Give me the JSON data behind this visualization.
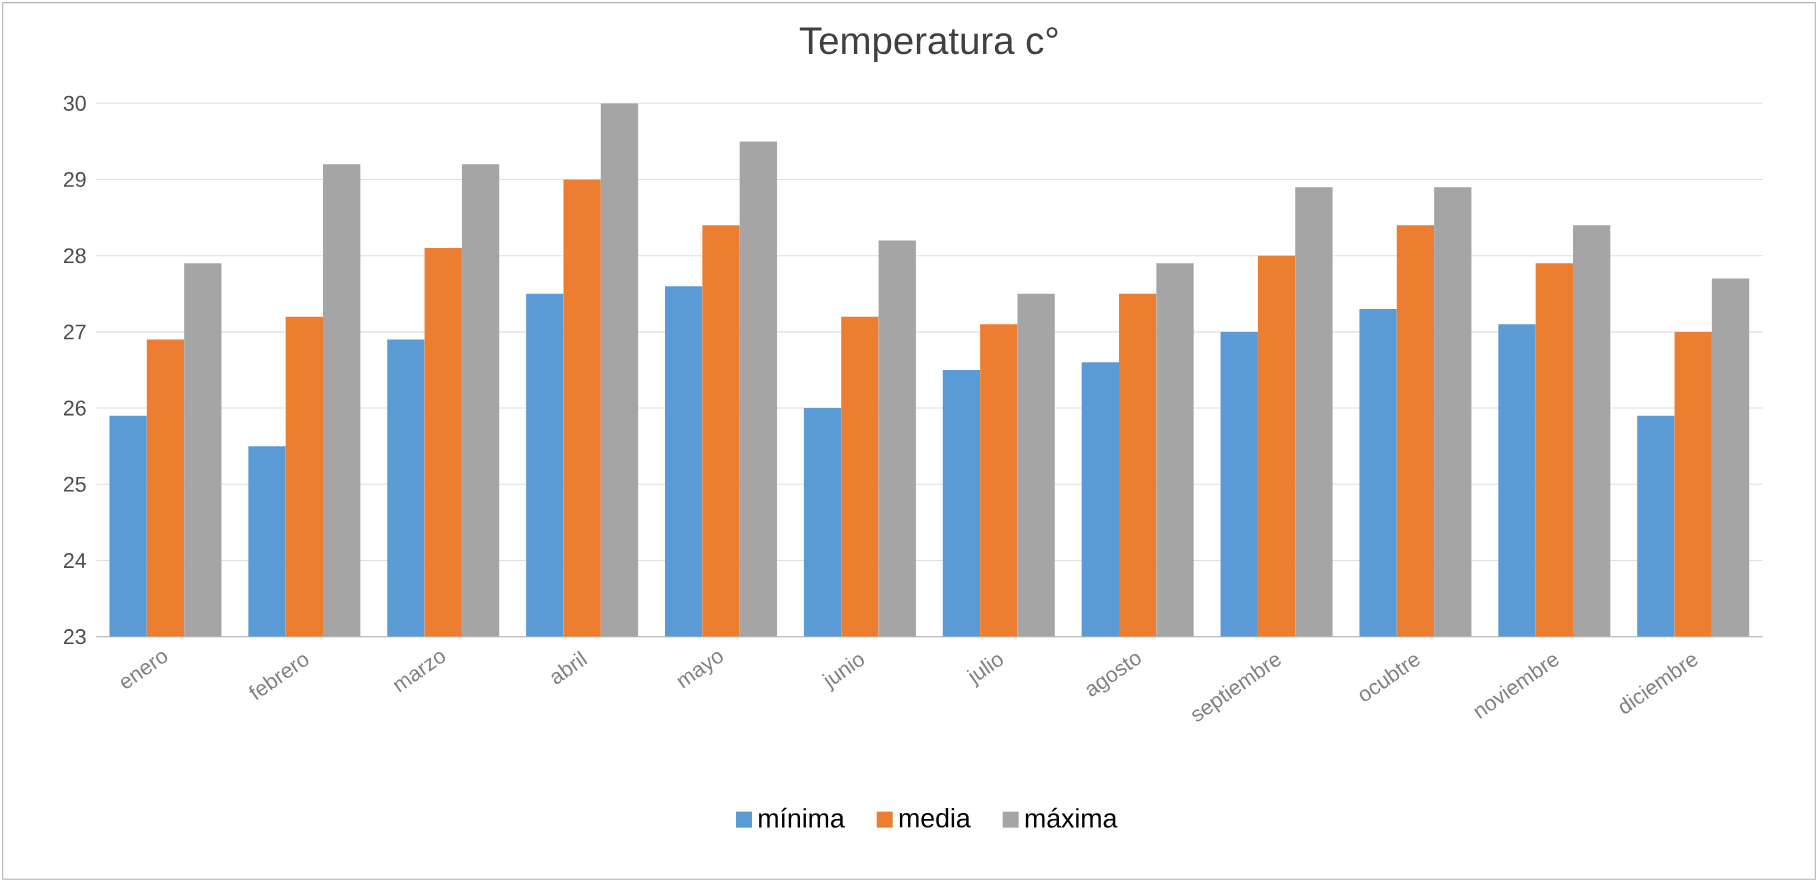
{
  "chart_data": {
    "type": "bar",
    "title": "Temperatura  c°",
    "categories": [
      "enero",
      "febrero",
      "marzo",
      "abril",
      "mayo",
      "junio",
      "julio",
      "agosto",
      "septiembre",
      "ocubtre",
      "noviembre",
      "diciembre"
    ],
    "series": [
      {
        "name": "mínima",
        "color": "#5b9bd5",
        "values": [
          25.9,
          25.5,
          26.9,
          27.5,
          27.6,
          26.0,
          26.5,
          26.6,
          27.0,
          27.3,
          27.1,
          25.9
        ]
      },
      {
        "name": "media",
        "color": "#ed7d31",
        "values": [
          26.9,
          27.2,
          28.1,
          29.0,
          28.4,
          27.2,
          27.1,
          27.5,
          28.0,
          28.4,
          27.9,
          27.0
        ]
      },
      {
        "name": "máxima",
        "color": "#a5a5a5",
        "values": [
          27.9,
          29.2,
          29.2,
          30.0,
          29.5,
          28.2,
          27.5,
          27.9,
          28.9,
          28.9,
          28.4,
          27.7
        ]
      }
    ],
    "ylim": [
      23,
      30
    ],
    "yticks": [
      23,
      24,
      25,
      26,
      27,
      28,
      29,
      30
    ],
    "grid": "y",
    "legend": "bottom"
  }
}
